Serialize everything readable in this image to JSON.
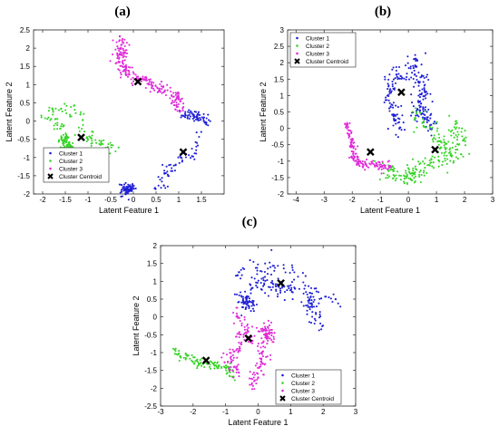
{
  "colors": {
    "cluster1": "#1f1fd6",
    "cluster2": "#35d425",
    "cluster3": "#e02ad8",
    "centroid": "#000000"
  },
  "chart_data": [
    {
      "panel": "(a)",
      "type": "scatter",
      "xlabel": "Latent Feature 1",
      "ylabel": "Latent Feature 2",
      "xlim": [
        -2.2,
        2.0
      ],
      "ylim": [
        -2.0,
        2.5
      ],
      "xticks": [
        -2,
        -1.5,
        -1,
        -0.5,
        0,
        0.5,
        1,
        1.5
      ],
      "yticks": [
        -2,
        -1.5,
        -1,
        -0.5,
        0,
        0.5,
        1,
        1.5,
        2,
        2.5
      ],
      "legend_location": "bottom-left",
      "series": [
        {
          "name": "Cluster 1",
          "color": "#1f1fd6",
          "paths": [
            [
              [
                1.05,
                0.2
              ],
              [
                1.2,
                0.15
              ],
              [
                1.35,
                0.15
              ],
              [
                1.45,
                0.1
              ],
              [
                1.55,
                0.05
              ],
              [
                1.6,
                -0.1
              ]
            ],
            [
              [
                1.45,
                -0.4
              ],
              [
                1.4,
                -0.7
              ],
              [
                1.25,
                -0.95
              ],
              [
                1.05,
                -1.0
              ],
              [
                0.8,
                -1.25
              ],
              [
                0.7,
                -1.55
              ],
              [
                0.55,
                -1.8
              ],
              [
                0.45,
                -1.95
              ]
            ],
            [
              [
                -0.1,
                -1.8
              ],
              [
                -0.15,
                -1.95
              ]
            ]
          ],
          "spread": 0.07,
          "count": 200
        },
        {
          "name": "Cluster 2",
          "color": "#35d425",
          "paths": [
            [
              [
                -1.55,
                -0.2
              ],
              [
                -1.75,
                -0.05
              ],
              [
                -1.9,
                0.1
              ],
              [
                -1.8,
                0.35
              ],
              [
                -1.55,
                0.3
              ],
              [
                -1.35,
                0.35
              ],
              [
                -1.15,
                0.15
              ],
              [
                -1.05,
                -0.2
              ],
              [
                -0.9,
                -0.6
              ],
              [
                -0.7,
                -0.65
              ],
              [
                -0.5,
                -0.7
              ],
              [
                -0.35,
                -0.85
              ]
            ],
            [
              [
                -1.55,
                -0.45
              ],
              [
                -1.45,
                -0.7
              ],
              [
                -1.25,
                -0.85
              ]
            ]
          ],
          "spread": 0.07,
          "count": 200
        },
        {
          "name": "Cluster 3",
          "color": "#e02ad8",
          "paths": [
            [
              [
                -0.3,
                2.3
              ],
              [
                -0.25,
                2.05
              ],
              [
                -0.3,
                1.75
              ],
              [
                -0.25,
                1.5
              ],
              [
                -0.1,
                1.25
              ],
              [
                0.15,
                1.15
              ],
              [
                0.35,
                1.05
              ],
              [
                0.6,
                0.85
              ],
              [
                0.8,
                0.8
              ],
              [
                0.95,
                0.65
              ],
              [
                1.0,
                0.45
              ],
              [
                1.05,
                0.3
              ]
            ]
          ],
          "spread": 0.08,
          "count": 230
        },
        {
          "name": "Cluster Centroid",
          "color": "#000000",
          "marker": "x",
          "x": [
            0.1,
            -1.15,
            1.1
          ],
          "y": [
            1.08,
            -0.45,
            -0.85
          ]
        }
      ]
    },
    {
      "panel": "(b)",
      "type": "scatter",
      "xlabel": "Latent Feature 1",
      "ylabel": "Latent Feature 2",
      "xlim": [
        -4.3,
        3.0
      ],
      "ylim": [
        -2.0,
        3.0
      ],
      "xticks": [
        -4,
        -3,
        -2,
        -1,
        0,
        1,
        2,
        3
      ],
      "yticks": [
        -2,
        -1.5,
        -1,
        -0.5,
        0,
        0.5,
        1,
        1.5,
        2,
        2.5,
        3
      ],
      "legend_location": "top-left",
      "series": [
        {
          "name": "Cluster 1",
          "color": "#1f1fd6",
          "paths": [
            [
              [
                0.4,
                2.0
              ],
              [
                0.2,
                1.9
              ],
              [
                -0.1,
                1.9
              ],
              [
                -0.4,
                1.6
              ],
              [
                -0.6,
                1.3
              ],
              [
                -0.7,
                0.95
              ],
              [
                -0.55,
                0.6
              ],
              [
                -0.45,
                0.3
              ],
              [
                -0.35,
                0.05
              ],
              [
                -0.3,
                -0.25
              ]
            ],
            [
              [
                0.2,
                1.7
              ],
              [
                0.45,
                1.45
              ],
              [
                0.55,
                1.1
              ],
              [
                0.45,
                0.8
              ],
              [
                0.35,
                0.55
              ],
              [
                0.55,
                0.3
              ],
              [
                0.75,
                0.1
              ],
              [
                0.9,
                0.15
              ]
            ]
          ],
          "spread": 0.14,
          "count": 230
        },
        {
          "name": "Cluster 2",
          "color": "#35d425",
          "paths": [
            [
              [
                0.2,
                0.5
              ],
              [
                0.5,
                0.2
              ],
              [
                0.8,
                -0.1
              ],
              [
                1.1,
                -0.4
              ],
              [
                1.35,
                -0.7
              ],
              [
                1.55,
                -0.95
              ],
              [
                1.7,
                -0.7
              ],
              [
                1.8,
                -0.3
              ],
              [
                1.65,
                0.1
              ]
            ],
            [
              [
                -0.8,
                -1.25
              ],
              [
                -0.45,
                -1.4
              ],
              [
                -0.1,
                -1.5
              ],
              [
                0.3,
                -1.4
              ],
              [
                0.6,
                -1.2
              ],
              [
                0.9,
                -0.95
              ],
              [
                1.3,
                -0.9
              ]
            ]
          ],
          "spread": 0.16,
          "count": 240
        },
        {
          "name": "Cluster 3",
          "color": "#e02ad8",
          "paths": [
            [
              [
                -2.2,
                0.2
              ],
              [
                -2.05,
                -0.2
              ],
              [
                -2.0,
                -0.55
              ],
              [
                -1.95,
                -0.85
              ],
              [
                -1.75,
                -1.05
              ],
              [
                -1.5,
                -1.1
              ],
              [
                -1.2,
                -1.1
              ],
              [
                -0.9,
                -1.15
              ],
              [
                -0.6,
                -1.2
              ]
            ]
          ],
          "spread": 0.07,
          "count": 150
        },
        {
          "name": "Cluster Centroid",
          "color": "#000000",
          "marker": "x",
          "x": [
            -0.25,
            -1.35,
            0.95
          ],
          "y": [
            1.1,
            -0.72,
            -0.65
          ]
        }
      ]
    },
    {
      "panel": "(c)",
      "type": "scatter",
      "xlabel": "Latent Feature 1",
      "ylabel": "Latent Feature 2",
      "xlim": [
        -3.0,
        3.0
      ],
      "ylim": [
        -2.5,
        2.0
      ],
      "xticks": [
        -3,
        -2,
        -1,
        0,
        1,
        2,
        3
      ],
      "yticks": [
        -2.5,
        -2,
        -1.5,
        -1,
        -0.5,
        0,
        0.5,
        1,
        1.5,
        2
      ],
      "legend_location": "bottom-right",
      "series": [
        {
          "name": "Cluster 1",
          "color": "#1f1fd6",
          "paths": [
            [
              [
                -0.65,
                1.1
              ],
              [
                -0.5,
                1.35
              ],
              [
                -0.2,
                1.45
              ],
              [
                0.1,
                1.3
              ],
              [
                0.4,
                1.2
              ],
              [
                0.65,
                1.45
              ],
              [
                0.85,
                1.4
              ],
              [
                1.05,
                1.3
              ],
              [
                1.3,
                1.1
              ],
              [
                1.5,
                0.85
              ],
              [
                1.75,
                0.7
              ],
              [
                2.05,
                0.6
              ],
              [
                2.3,
                0.5
              ],
              [
                2.6,
                0.4
              ]
            ],
            [
              [
                -0.3,
                0.9
              ],
              [
                0.0,
                0.95
              ],
              [
                0.35,
                0.9
              ],
              [
                0.6,
                0.75
              ],
              [
                0.9,
                0.75
              ],
              [
                1.2,
                0.85
              ]
            ],
            [
              [
                1.55,
                0.6
              ],
              [
                1.6,
                0.3
              ],
              [
                1.75,
                0.1
              ],
              [
                1.85,
                -0.2
              ]
            ],
            [
              [
                -0.5,
                0.55
              ],
              [
                -0.3,
                0.3
              ]
            ]
          ],
          "spread": 0.12,
          "count": 250
        },
        {
          "name": "Cluster 2",
          "color": "#35d425",
          "paths": [
            [
              [
                -2.55,
                -1.0
              ],
              [
                -2.3,
                -1.1
              ],
              [
                -2.05,
                -1.2
              ],
              [
                -1.8,
                -1.3
              ],
              [
                -1.55,
                -1.35
              ],
              [
                -1.3,
                -1.35
              ],
              [
                -1.0,
                -1.4
              ],
              [
                -0.85,
                -1.55
              ],
              [
                -0.75,
                -1.75
              ]
            ]
          ],
          "spread": 0.07,
          "count": 100
        },
        {
          "name": "Cluster 3",
          "color": "#e02ad8",
          "paths": [
            [
              [
                -0.75,
                0.15
              ],
              [
                -0.55,
                0.0
              ],
              [
                -0.4,
                -0.25
              ],
              [
                -0.45,
                -0.55
              ],
              [
                -0.55,
                -0.8
              ],
              [
                -0.75,
                -1.0
              ],
              [
                -0.95,
                -1.2
              ],
              [
                -0.75,
                -1.45
              ],
              [
                -0.5,
                -1.55
              ]
            ],
            [
              [
                -0.35,
                -0.4
              ],
              [
                -0.15,
                -0.7
              ],
              [
                0.05,
                -0.95
              ],
              [
                0.15,
                -1.2
              ],
              [
                0.05,
                -1.5
              ],
              [
                -0.1,
                -1.75
              ],
              [
                -0.2,
                -2.0
              ]
            ],
            [
              [
                0.2,
                -0.3
              ],
              [
                0.35,
                -0.6
              ]
            ]
          ],
          "spread": 0.1,
          "count": 230
        },
        {
          "name": "Cluster Centroid",
          "color": "#000000",
          "marker": "x",
          "x": [
            0.7,
            -1.6,
            -0.3
          ],
          "y": [
            0.95,
            -1.22,
            -0.6
          ]
        }
      ]
    }
  ]
}
